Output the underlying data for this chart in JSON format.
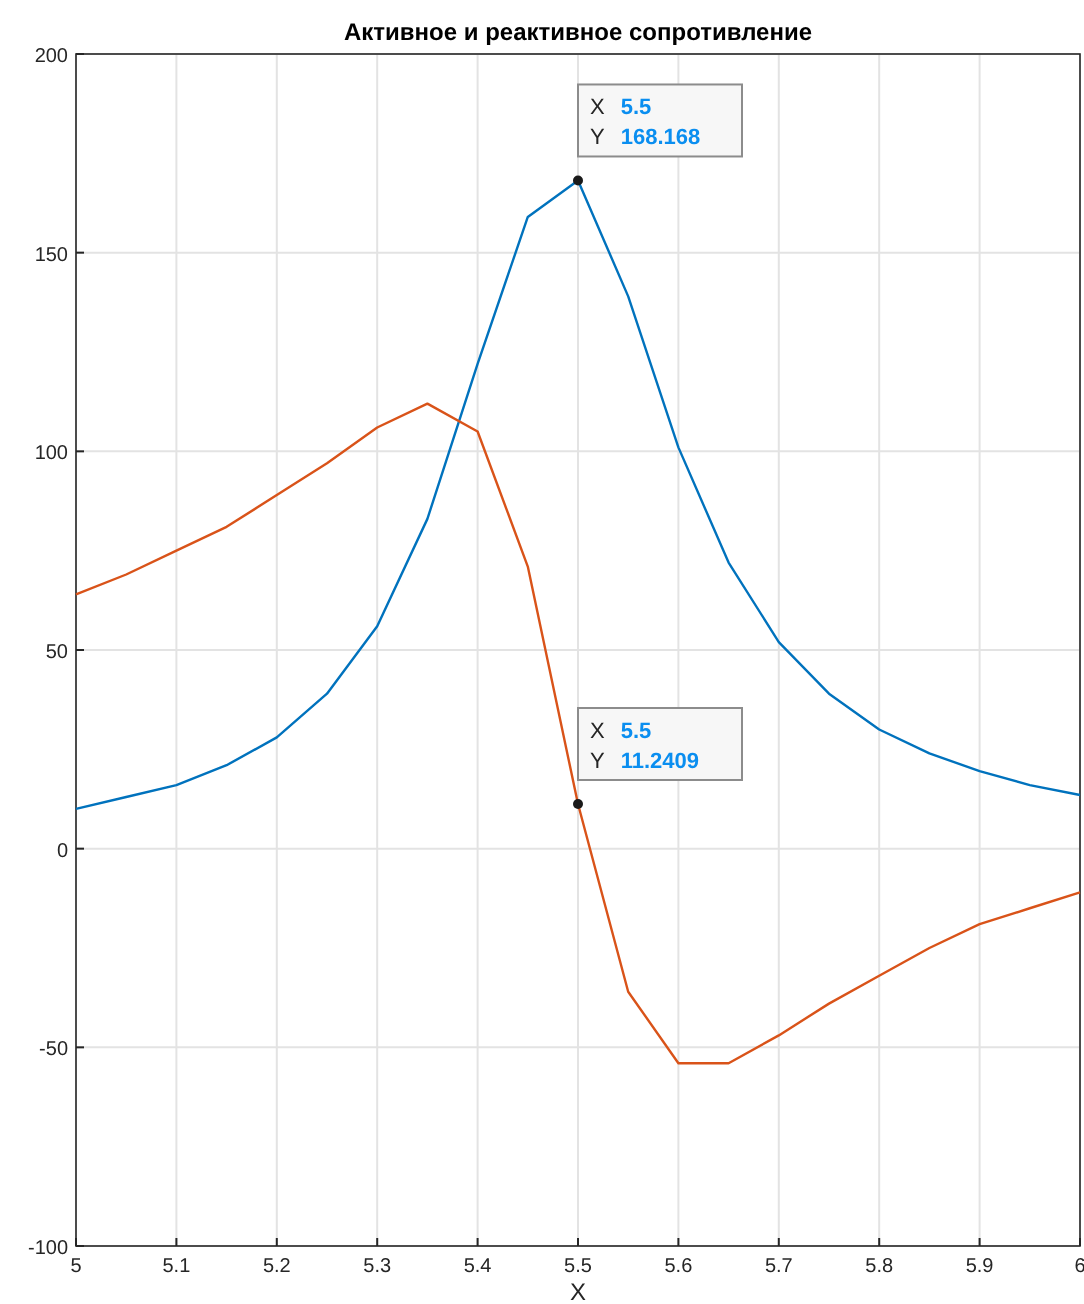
{
  "chart_data": {
    "type": "line",
    "title": "Активное и реактивное сопротивление",
    "xlabel": "X",
    "x": [
      5,
      5.05,
      5.1,
      5.15,
      5.2,
      5.25,
      5.3,
      5.35,
      5.4,
      5.45,
      5.5,
      5.55,
      5.6,
      5.65,
      5.7,
      5.75,
      5.8,
      5.85,
      5.9,
      5.95,
      6
    ],
    "series": [
      {
        "color": "#0072bd",
        "values": [
          10,
          13,
          16,
          21,
          28,
          39,
          56,
          83,
          122,
          159,
          168.168,
          139,
          101,
          72,
          52,
          39,
          30,
          24,
          19.5,
          16,
          13.5
        ]
      },
      {
        "color": "#d95319",
        "values": [
          64,
          69,
          75,
          81,
          89,
          97,
          106,
          112,
          105,
          71,
          11.2409,
          -36,
          -54,
          -54,
          -47,
          -39,
          -32,
          -25,
          -19,
          -15,
          -11
        ]
      }
    ],
    "xlim": [
      5,
      6
    ],
    "xticks": [
      5,
      5.1,
      5.2,
      5.3,
      5.4,
      5.5,
      5.6,
      5.7,
      5.8,
      5.9,
      6
    ],
    "ylim": [
      -100,
      200
    ],
    "yticks": [
      -100,
      -50,
      0,
      50,
      100,
      150,
      200
    ],
    "grid": true,
    "marker": "none",
    "line_style": "solid",
    "annotations": [
      {
        "text": "X 5.5\nY 168.168",
        "x": 5.5,
        "y": 168.168
      },
      {
        "text": "X 5.5\nY 11.2409",
        "x": 5.5,
        "y": 11.2409
      }
    ]
  }
}
